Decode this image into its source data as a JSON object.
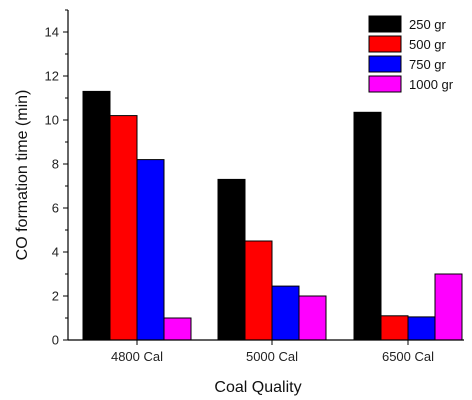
{
  "chart_data": {
    "type": "bar",
    "title": "",
    "xlabel": "Coal Quality",
    "ylabel": "CO formation time (min)",
    "ylim": [
      0,
      15
    ],
    "yticks": [
      0,
      2,
      4,
      6,
      8,
      10,
      12,
      14
    ],
    "categories": [
      "4800 Cal",
      "5000 Cal",
      "6500 Cal"
    ],
    "series": [
      {
        "name": "250 gr",
        "color": "#000000",
        "values": [
          11.3,
          7.3,
          10.35
        ]
      },
      {
        "name": "500 gr",
        "color": "#ff0000",
        "values": [
          10.2,
          4.5,
          1.1
        ]
      },
      {
        "name": "750 gr",
        "color": "#0000ff",
        "values": [
          8.2,
          2.45,
          1.05
        ]
      },
      {
        "name": "1000 gr",
        "color": "#ff00ff",
        "values": [
          1.0,
          2.0,
          3.0
        ]
      }
    ],
    "legend": "top-right",
    "grid": false
  }
}
